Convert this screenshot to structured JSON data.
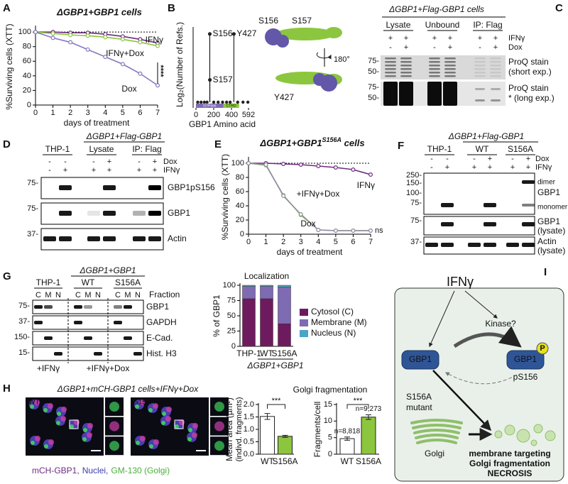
{
  "panel_labels": [
    "A",
    "B",
    "C",
    "D",
    "E",
    "F",
    "G",
    "H",
    "I"
  ],
  "chart_data": [
    {
      "type": "line",
      "title": "ΔGBP1+GBP1 cells",
      "x_label": "days of treatment",
      "y_label": "%Surviving cells (XTT)",
      "x": [
        0,
        1,
        2,
        3,
        4,
        5,
        6,
        7
      ],
      "xlim": [
        0,
        7
      ],
      "xticks": [
        0,
        1,
        2,
        3,
        4,
        5,
        6,
        7
      ],
      "ylim": [
        0,
        105
      ],
      "yticks": [
        0,
        20,
        40,
        60,
        80,
        100
      ],
      "reference_line": 100,
      "annotation": "****",
      "series": [
        {
          "name": "IFNγ",
          "color": "#6b2c7f",
          "values": [
            100,
            100,
            99,
            99,
            97,
            94,
            90,
            85
          ]
        },
        {
          "name": "IFNγ+Dox",
          "color": "#8cc63e",
          "values": [
            100,
            98,
            96,
            95,
            93,
            90,
            86,
            81
          ]
        },
        {
          "name": "Dox",
          "color": "#8478c0",
          "values": [
            100,
            92,
            86,
            76,
            66,
            56,
            43,
            27
          ]
        }
      ]
    },
    {
      "type": "lollipop",
      "y_label": "Log₂(Number of Refs.)",
      "x_label": "GBP1 Amino acid",
      "xlim": [
        0,
        592
      ],
      "xticks": [
        0,
        200,
        400,
        592
      ],
      "ylim": [
        0,
        5.4
      ],
      "domains": [
        "GTPase",
        "CTRD"
      ],
      "sites": {
        "labels": [
          "S156",
          "S157",
          "Y427"
        ],
        "x": [
          156,
          157,
          427
        ],
        "values": [
          4.9,
          1.6,
          4.9
        ]
      },
      "other_sites": {
        "x": [
          20,
          58,
          95,
          125,
          200,
          250,
          300,
          345,
          385,
          470,
          530,
          585
        ],
        "values": [
          0,
          0,
          0,
          0,
          0,
          0,
          0,
          0,
          0,
          0,
          0,
          0
        ]
      }
    },
    {
      "type": "line",
      "title": "ΔGBP1+GBP1",
      "title_superscript": "S156A",
      "title_suffix": " cells",
      "x_label": "days of treatment",
      "y_label": "%Surviving cells (XTT)",
      "x": [
        0,
        1,
        2,
        3,
        4,
        5,
        6,
        7
      ],
      "xlim": [
        0,
        7
      ],
      "xticks": [
        0,
        1,
        2,
        3,
        4,
        5,
        6,
        7
      ],
      "ylim": [
        0,
        105
      ],
      "yticks": [
        0,
        20,
        40,
        60,
        80,
        100
      ],
      "reference_line": 100,
      "annotation": "ns",
      "series": [
        {
          "name": "IFNγ",
          "color": "#6b2c7f",
          "values": [
            100,
            100,
            99,
            98,
            96,
            94,
            91,
            84
          ]
        },
        {
          "name": "+IFNγ+Dox",
          "color": "#8cc63e",
          "values": [
            100,
            97,
            55,
            27,
            6,
            5,
            5,
            5
          ]
        },
        {
          "name": "Dox",
          "color": "#8e8aa8",
          "values": [
            100,
            98,
            54,
            28,
            6,
            5,
            5,
            5
          ]
        }
      ]
    },
    {
      "type": "stacked_bar",
      "title": "Localization",
      "y_label": "% of GBP1",
      "categories": [
        "THP-1",
        "WT",
        "S156A"
      ],
      "group_label": "ΔGBP1+GBP1",
      "ylim": [
        0,
        100
      ],
      "yticks": [
        0,
        25,
        50,
        75,
        100
      ],
      "series": [
        {
          "name": "Cytosol (C)",
          "color": "#6d1b5e",
          "values": [
            78,
            78,
            37
          ]
        },
        {
          "name": "Membrane (M)",
          "color": "#7f6bb3",
          "values": [
            20,
            20,
            60
          ]
        },
        {
          "name": "Nucleus (N)",
          "color": "#4aa6c4",
          "values": [
            2,
            2,
            3
          ]
        }
      ]
    },
    {
      "type": "bar",
      "title": "Golgi fragmentation",
      "y_label": "Mean area (µm²)",
      "y_label_2": "(indivd. fragments)",
      "categories": [
        "WT",
        "S156A"
      ],
      "values": [
        1.52,
        0.72
      ],
      "errors": [
        0.12,
        0.04
      ],
      "colors": [
        "#ffffff",
        "#8cc63e"
      ],
      "ylim": [
        0,
        2
      ],
      "yticks": [
        {
          "value": 0,
          "label": "0.0"
        },
        {
          "value": 0.5,
          "label": "0.5"
        },
        {
          "value": 1,
          "label": "1.0"
        },
        {
          "value": 1.5,
          "label": "1.5"
        },
        {
          "value": 2,
          "label": "2.0"
        }
      ],
      "annotation": "***"
    },
    {
      "type": "bar",
      "y_label": "Fragments/cell",
      "categories": [
        "WT",
        "S156A"
      ],
      "values": [
        4.7,
        11.2
      ],
      "errors": [
        0.5,
        0.7
      ],
      "colors": [
        "#ffffff",
        "#8cc63e"
      ],
      "ylim": [
        0,
        15
      ],
      "yticks": [
        0,
        5,
        10,
        15
      ],
      "n_labels": [
        "n=8,818",
        "n=9,273"
      ],
      "annotation": "***"
    }
  ],
  "structure_b": {
    "labels": [
      "S156",
      "S157",
      "180°",
      "Y427"
    ]
  },
  "blot_c": {
    "title": "ΔGBP1+Flag-GBP1 cells",
    "groups": [
      "Lysate",
      "Unbound",
      "IP: Flag"
    ],
    "conditions": [
      {
        "label": "IFNγ",
        "signs": [
          "+",
          "+",
          "+",
          "+",
          "+",
          "+"
        ]
      },
      {
        "label": "Dox",
        "signs": [
          "-",
          "+",
          "-",
          "+",
          "-",
          "+"
        ]
      }
    ],
    "panels": [
      {
        "markers": [
          "75-",
          "50-"
        ],
        "labels": [
          "ProQ stain",
          "(short exp.)"
        ]
      },
      {
        "markers": [
          "75-",
          "50-"
        ],
        "labels": [
          "ProQ stain",
          "* (long exp.)"
        ]
      }
    ]
  },
  "blot_d": {
    "header": "ΔGBP1+Flag-GBP1",
    "groups": [
      "THP-1",
      "Lysate",
      "IP: Flag"
    ],
    "conditions": [
      {
        "label": "Dox",
        "signs": [
          "-",
          "-",
          "-",
          "+",
          "-",
          "+"
        ]
      },
      {
        "label": "IFNγ",
        "signs": [
          "-",
          "+",
          "+",
          "+",
          "+",
          "+"
        ]
      }
    ],
    "panels": [
      {
        "markers": [
          "75-"
        ],
        "labels": [
          "GBP1pS156"
        ]
      },
      {
        "markers": [
          "75-"
        ],
        "labels": [
          "GBP1"
        ]
      },
      {
        "markers": [
          "37-"
        ],
        "labels": [
          "Actin"
        ]
      }
    ]
  },
  "blot_f": {
    "header": "ΔGBP1+Flag-GBP1",
    "groups": [
      "THP-1",
      "WT",
      "S156A"
    ],
    "conditions": [
      {
        "label": "Dox",
        "signs": [
          "-",
          "-",
          "-",
          "+",
          "-",
          "+"
        ]
      },
      {
        "label": "IFNγ",
        "signs": [
          "-",
          "+",
          "+",
          "+",
          "+",
          "+"
        ]
      }
    ],
    "panels": [
      {
        "markers": [
          "250-",
          "150-",
          "100-",
          "75-"
        ],
        "labels": [
          "dimer",
          "GBP1",
          "monomer"
        ]
      },
      {
        "markers": [
          "75-"
        ],
        "labels": [
          "GBP1",
          "(lysate)"
        ]
      },
      {
        "markers": [
          "37-"
        ],
        "labels": [
          "Actin",
          "(lysate)"
        ]
      }
    ]
  },
  "blot_g": {
    "header": "ΔGBP1+GBP1",
    "groups": [
      "THP-1",
      "WT",
      "S156A"
    ],
    "fraction_label": "Fraction",
    "fractions": [
      "C",
      "M",
      "N"
    ],
    "panels": [
      {
        "markers": [
          "75-"
        ],
        "labels": [
          "GBP1"
        ]
      },
      {
        "markers": [
          "37-"
        ],
        "labels": [
          "GAPDH"
        ]
      },
      {
        "markers": [
          "150-"
        ],
        "labels": [
          "E-Cad."
        ]
      },
      {
        "markers": [
          "15-"
        ],
        "labels": [
          "Hist. H3"
        ]
      }
    ],
    "treatments": [
      "+IFNγ",
      "+IFNγ+Dox"
    ]
  },
  "images_h": {
    "title": "ΔGBP1+mCH-GBP1 cells+IFNγ+Dox",
    "labels": [
      "WT",
      "S156A"
    ],
    "legend": [
      "mCH-GBP1,",
      "Nuclei,",
      "GM-130 (Golgi)"
    ]
  },
  "diagram_i": {
    "stimulus": "IFNγ",
    "kinase": "Kinase?",
    "nodes": [
      "GBP1",
      "GBP1"
    ],
    "phospho": "P",
    "site": "pS156",
    "mutant": [
      "S156A",
      "mutant"
    ],
    "organelle": "Golgi",
    "outcomes": [
      "membrane targeting",
      "Golgi fragmentation",
      "NECROSIS"
    ]
  }
}
